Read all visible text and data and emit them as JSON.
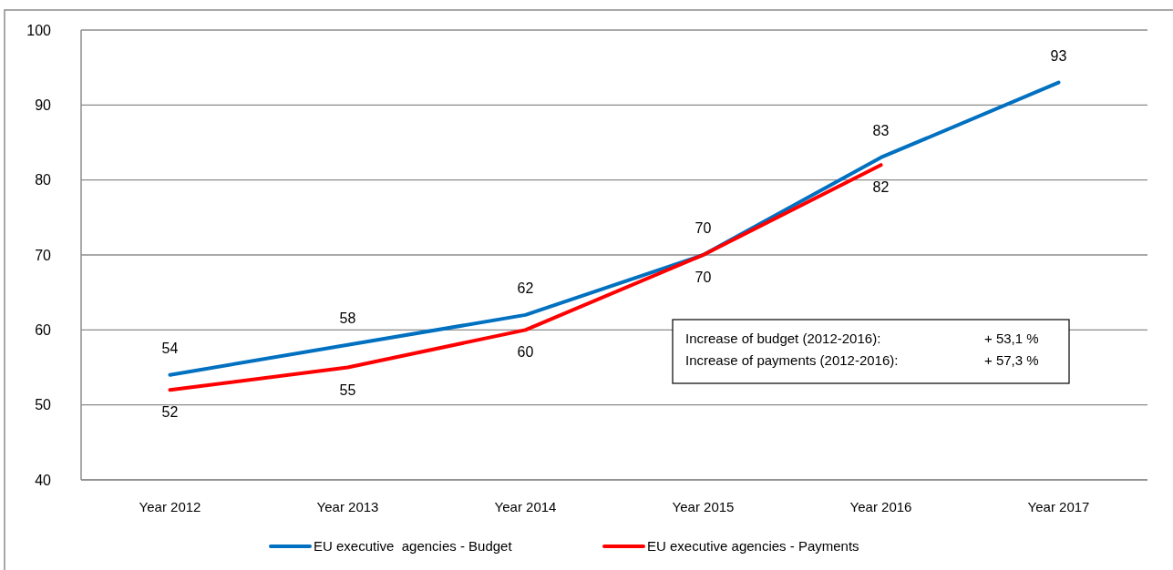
{
  "chart_data": {
    "type": "line",
    "categories": [
      "Year 2012",
      "Year 2013",
      "Year 2014",
      "Year 2015",
      "Year 2016",
      "Year 2017"
    ],
    "series": [
      {
        "name": "EU executive  agencies - Budget",
        "color": "#0070c0",
        "values": [
          54,
          58,
          62,
          70,
          83,
          93
        ]
      },
      {
        "name": "EU executive agencies - Payments",
        "color": "#ff0000",
        "values": [
          52,
          55,
          60,
          70,
          82,
          null
        ]
      }
    ],
    "ylim": [
      40,
      100
    ],
    "yticks": [
      40,
      50,
      60,
      70,
      80,
      90,
      100
    ],
    "grid": "y",
    "legend": "bottom",
    "data_labels": true,
    "marker": "none",
    "line_style": "solid",
    "annotations": [
      "Increase of budget (2012-2016):",
      "+ 53,1 %",
      "Increase of payments (2012-2016):",
      "+ 57,3 %"
    ]
  }
}
